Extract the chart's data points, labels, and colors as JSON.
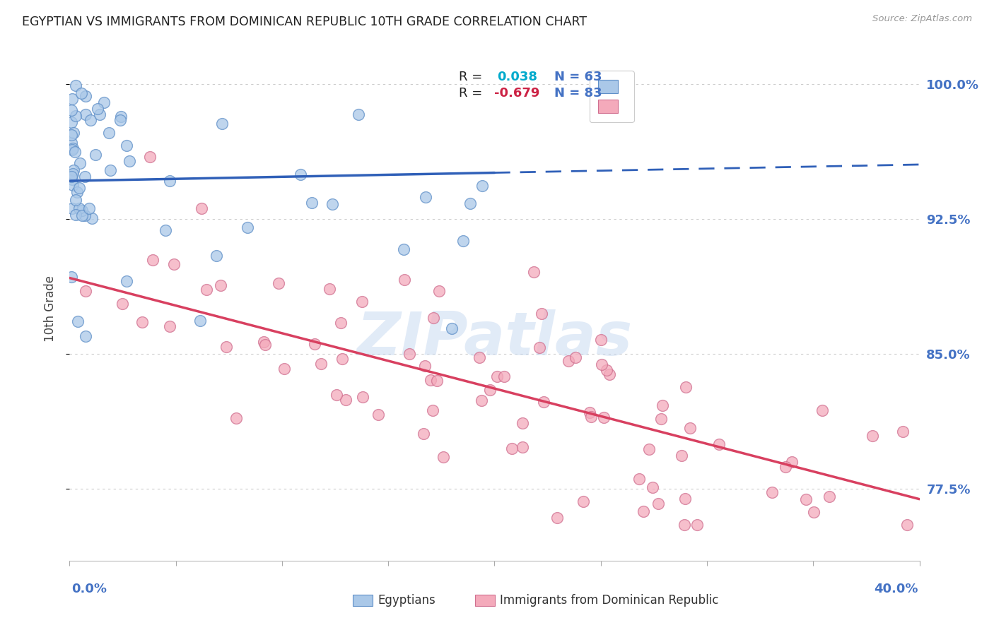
{
  "title": "EGYPTIAN VS IMMIGRANTS FROM DOMINICAN REPUBLIC 10TH GRADE CORRELATION CHART",
  "source": "Source: ZipAtlas.com",
  "ylabel": "10th Grade",
  "xlim": [
    0.0,
    0.4
  ],
  "ylim": [
    0.735,
    1.015
  ],
  "yticks": [
    0.775,
    0.85,
    0.925,
    1.0
  ],
  "ytick_labels": [
    "77.5%",
    "85.0%",
    "92.5%",
    "100.0%"
  ],
  "blue_R": 0.038,
  "blue_N": 63,
  "pink_R": -0.679,
  "pink_N": 83,
  "blue_color": "#aac8e8",
  "pink_color": "#f4aabb",
  "blue_edge_color": "#6090c8",
  "pink_edge_color": "#d07090",
  "blue_line_color": "#3060b8",
  "pink_line_color": "#d84060",
  "right_axis_color": "#4472c4",
  "title_color": "#222222",
  "source_color": "#999999",
  "background_color": "#ffffff",
  "grid_color": "#cccccc",
  "watermark_text": "ZIPatlas",
  "legend_r1_color": "#00aacc",
  "legend_r2_color": "#cc2244",
  "legend_n_color": "#4472c4",
  "bottom_label_1": "Egyptians",
  "bottom_label_2": "Immigrants from Dominican Republic"
}
